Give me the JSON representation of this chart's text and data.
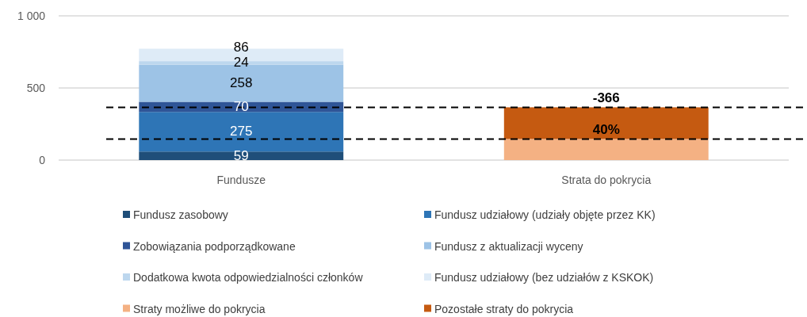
{
  "chart_data": {
    "type": "bar",
    "stacked": true,
    "categories": [
      "Fundusze",
      "Strata do pokrycia"
    ],
    "ylim": [
      0,
      1000
    ],
    "yticks": [
      0,
      500,
      {
        "value": 1000,
        "label": "1 000"
      }
    ],
    "grid": "y",
    "legend": "bottom",
    "series": [
      {
        "name": "Fundusz zasobowy",
        "color": "#1f4e79",
        "values": [
          59,
          null
        ],
        "value_labels": [
          "59",
          null
        ]
      },
      {
        "name": "Fundusz udziałowy (udziały objęte przez KK)",
        "color": "#2e75b6",
        "values": [
          275,
          null
        ],
        "value_labels": [
          "275",
          null
        ]
      },
      {
        "name": "Zobowiązania podporządkowane",
        "color": "#2f5597",
        "values": [
          70,
          null
        ],
        "value_labels": [
          "70",
          null
        ]
      },
      {
        "name": "Fundusz z aktualizacji wyceny",
        "color": "#9dc3e6",
        "values": [
          258,
          null
        ],
        "value_labels": [
          "258",
          null
        ]
      },
      {
        "name": "Dodatkowa kwota odpowiedzialności członków",
        "color": "#bdd7ee",
        "values": [
          24,
          null
        ],
        "value_labels": [
          "24",
          null
        ]
      },
      {
        "name": "Fundusz udziałowy (bez udziałów z KSKOK)",
        "color": "#deebf7",
        "values": [
          86,
          null
        ],
        "value_labels": [
          "86",
          null
        ]
      },
      {
        "name": "Straty możliwe do pokrycia",
        "color": "#f4b183",
        "values": [
          null,
          146
        ]
      },
      {
        "name": "Pozostałe straty do pokrycia",
        "color": "#c55a11",
        "values": [
          null,
          220
        ]
      }
    ],
    "annotations": [
      {
        "text": "-366",
        "x": "Strata do pokrycia",
        "y": 366
      },
      {
        "text": "40%",
        "x": "Strata do pokrycia",
        "y": 146
      }
    ],
    "ref_lines": [
      {
        "axis": "y",
        "value": 366,
        "color": "#000000",
        "line_style": "dashed"
      },
      {
        "axis": "y",
        "value": 146,
        "color": "#000000",
        "line_style": "dashed"
      }
    ]
  }
}
